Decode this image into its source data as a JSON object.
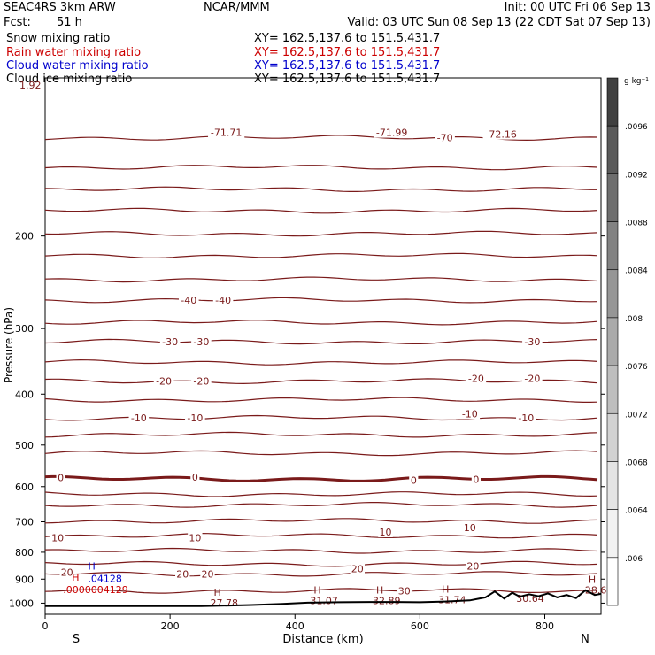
{
  "header": {
    "experiment": "SEAC4RS  3km ARW",
    "center": "NCAR/MMM",
    "init": "Init: 00 UTC Fri 06 Sep 13",
    "fcst_label": "Fcst:",
    "fcst_value": "51 h",
    "valid": "Valid: 03 UTC Sun 08 Sep 13 (22 CDT Sat 07 Sep 13)"
  },
  "fields": [
    {
      "name": "Snow mixing ratio",
      "xy": "XY=  162.5,137.6 to 151.5,431.7",
      "color": "#000000"
    },
    {
      "name": "Rain water mixing ratio",
      "xy": "XY=  162.5,137.6 to 151.5,431.7",
      "color": "#cc0000"
    },
    {
      "name": "Cloud water mixing ratio",
      "xy": "XY=  162.5,137.6 to 151.5,431.7",
      "color": "#0000cc"
    },
    {
      "name": "Cloud ice mixing ratio",
      "xy": "XY=  162.5,137.6 to 151.5,431.7",
      "color": "#000000"
    }
  ],
  "colors": {
    "isotherm": "#7a1a1a",
    "terrain": "#000000",
    "cloud_water": "#0000cc",
    "rain": "#cc0000"
  },
  "chart_data": {
    "type": "line",
    "xlabel": "Distance (km)",
    "ylabel": "Pressure (hPa)",
    "xlim": [
      0,
      890
    ],
    "ylim": [
      1050,
      100
    ],
    "y_scale": "log",
    "xticks": [
      0,
      200,
      400,
      600,
      800
    ],
    "yticks": [
      200,
      300,
      400,
      500,
      600,
      700,
      800,
      900,
      1000
    ],
    "ytick_top": "1.92",
    "end_labels": {
      "left": "S",
      "right": "N"
    },
    "colorbar": {
      "unit": "g kg⁻¹",
      "ticks": [
        ".0096",
        ".0092",
        ".0088",
        ".0084",
        ".008",
        ".0076",
        ".0072",
        ".0068",
        ".0064",
        ".006"
      ],
      "shades": [
        "#404040",
        "#5a5a5a",
        "#6e6e6e",
        "#828282",
        "#969696",
        "#aaaaaa",
        "#bebebe",
        "#d2d2d2",
        "#e4e4e4",
        "#f2f2f2",
        "#ffffff"
      ]
    },
    "isotherms": [
      {
        "p": 130,
        "label": "",
        "w": 1.2
      },
      {
        "p": 148,
        "label": "",
        "w": 1.2
      },
      {
        "p": 163,
        "label": "",
        "w": 1.2
      },
      {
        "p": 179,
        "label": "",
        "w": 1.2
      },
      {
        "p": 198,
        "label": "",
        "w": 1.2
      },
      {
        "p": 218,
        "label": "",
        "w": 1.2
      },
      {
        "p": 242,
        "label": "",
        "w": 1.2
      },
      {
        "p": 265,
        "label": "-40",
        "w": 1.2
      },
      {
        "p": 292,
        "label": "",
        "w": 1.2
      },
      {
        "p": 318,
        "label": "-30",
        "w": 1.2
      },
      {
        "p": 348,
        "label": "",
        "w": 1.2
      },
      {
        "p": 378,
        "label": "-20",
        "w": 1.2
      },
      {
        "p": 410,
        "label": "",
        "w": 1.2
      },
      {
        "p": 444,
        "label": "-10",
        "w": 1.2
      },
      {
        "p": 478,
        "label": "",
        "w": 1.2
      },
      {
        "p": 518,
        "label": "",
        "w": 1.2
      },
      {
        "p": 580,
        "label": "0",
        "w": 3
      },
      {
        "p": 620,
        "label": "",
        "w": 1.2
      },
      {
        "p": 650,
        "label": "",
        "w": 1.2
      },
      {
        "p": 697,
        "label": "",
        "w": 1.2
      },
      {
        "p": 744,
        "label": "10",
        "w": 1.2
      },
      {
        "p": 795,
        "label": "",
        "w": 1.2
      },
      {
        "p": 842,
        "label": "",
        "w": 1.2
      },
      {
        "p": 880,
        "label": "20",
        "w": 1.2
      },
      {
        "p": 947,
        "label": "30",
        "w": 1.2
      }
    ],
    "contour_labels": [
      {
        "x": 290,
        "p": 127,
        "text": "-71.71"
      },
      {
        "x": 555,
        "p": 127,
        "text": "-71.99"
      },
      {
        "x": 640,
        "p": 130,
        "text": "-70"
      },
      {
        "x": 730,
        "p": 128,
        "text": "-72.16"
      },
      {
        "x": 230,
        "p": 265,
        "text": "-40"
      },
      {
        "x": 285,
        "p": 265,
        "text": "-40"
      },
      {
        "x": 200,
        "p": 318,
        "text": "-30"
      },
      {
        "x": 250,
        "p": 318,
        "text": "-30"
      },
      {
        "x": 780,
        "p": 318,
        "text": "-30"
      },
      {
        "x": 190,
        "p": 378,
        "text": "-20"
      },
      {
        "x": 250,
        "p": 378,
        "text": "-20"
      },
      {
        "x": 690,
        "p": 373,
        "text": "-20"
      },
      {
        "x": 780,
        "p": 373,
        "text": "-20"
      },
      {
        "x": 150,
        "p": 444,
        "text": "-10"
      },
      {
        "x": 240,
        "p": 444,
        "text": "-10"
      },
      {
        "x": 680,
        "p": 436,
        "text": "-10"
      },
      {
        "x": 770,
        "p": 444,
        "text": "-10"
      },
      {
        "x": 25,
        "p": 577,
        "text": "0"
      },
      {
        "x": 240,
        "p": 575,
        "text": "0"
      },
      {
        "x": 590,
        "p": 583,
        "text": "0"
      },
      {
        "x": 690,
        "p": 581,
        "text": "0"
      },
      {
        "x": 20,
        "p": 750,
        "text": "10"
      },
      {
        "x": 240,
        "p": 750,
        "text": "10"
      },
      {
        "x": 545,
        "p": 732,
        "text": "10"
      },
      {
        "x": 680,
        "p": 718,
        "text": "10"
      },
      {
        "x": 35,
        "p": 874,
        "text": "20"
      },
      {
        "x": 220,
        "p": 880,
        "text": "20"
      },
      {
        "x": 260,
        "p": 880,
        "text": "20"
      },
      {
        "x": 500,
        "p": 860,
        "text": "20"
      },
      {
        "x": 685,
        "p": 850,
        "text": "20"
      },
      {
        "x": 575,
        "p": 947,
        "text": "30"
      }
    ],
    "cloud_water": {
      "x": 80,
      "p": 905,
      "max_label": "H",
      "value": ".04128"
    },
    "rain_water": {
      "x": 40,
      "p": 935,
      "max_label": "H",
      "value": ".0000004129"
    },
    "maxima": [
      {
        "x": 270,
        "p": 990,
        "label": "H",
        "value": "27.78"
      },
      {
        "x": 430,
        "p": 982,
        "label": "H",
        "value": "31.07"
      },
      {
        "x": 530,
        "p": 982,
        "label": "H",
        "value": "32.89"
      },
      {
        "x": 635,
        "p": 977,
        "label": "H",
        "value": "31.74"
      },
      {
        "x": 760,
        "p": 972,
        "label": "",
        "value": "30.64"
      },
      {
        "x": 870,
        "p": 937,
        "label": "H",
        "value": "28.6"
      }
    ],
    "terrain": {
      "x": [
        0,
        250,
        330,
        380,
        420,
        470,
        520,
        560,
        600,
        640,
        680,
        705,
        720,
        735,
        748,
        760,
        775,
        790,
        805,
        820,
        835,
        850,
        865,
        880,
        890
      ],
      "p": [
        1013,
        1013,
        1008,
        1003,
        998,
        996,
        995,
        995,
        996,
        993,
        988,
        975,
        950,
        980,
        955,
        972,
        962,
        970,
        958,
        975,
        965,
        978,
        945,
        965,
        960
      ]
    }
  }
}
